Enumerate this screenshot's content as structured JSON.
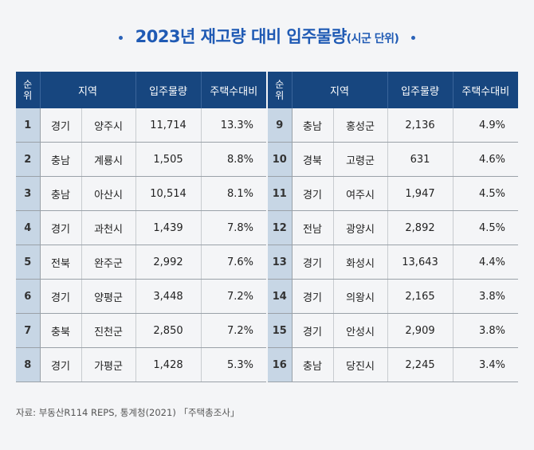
{
  "title": {
    "main": "2023년 재고량 대비 입주물량",
    "sub": "(시군 단위)"
  },
  "headers": {
    "rank": "순\n위",
    "region": "지역",
    "supply": "입주물량",
    "ratio": "주택수대비"
  },
  "left_rows": [
    {
      "rank": "1",
      "province": "경기",
      "city": "양주시",
      "supply": "11,714",
      "ratio": "13.3%"
    },
    {
      "rank": "2",
      "province": "충남",
      "city": "계룡시",
      "supply": "1,505",
      "ratio": "8.8%"
    },
    {
      "rank": "3",
      "province": "충남",
      "city": "아산시",
      "supply": "10,514",
      "ratio": "8.1%"
    },
    {
      "rank": "4",
      "province": "경기",
      "city": "과천시",
      "supply": "1,439",
      "ratio": "7.8%"
    },
    {
      "rank": "5",
      "province": "전북",
      "city": "완주군",
      "supply": "2,992",
      "ratio": "7.6%"
    },
    {
      "rank": "6",
      "province": "경기",
      "city": "양평군",
      "supply": "3,448",
      "ratio": "7.2%"
    },
    {
      "rank": "7",
      "province": "충북",
      "city": "진천군",
      "supply": "2,850",
      "ratio": "7.2%"
    },
    {
      "rank": "8",
      "province": "경기",
      "city": "가평군",
      "supply": "1,428",
      "ratio": "5.3%"
    }
  ],
  "right_rows": [
    {
      "rank": "9",
      "province": "충남",
      "city": "홍성군",
      "supply": "2,136",
      "ratio": "4.9%"
    },
    {
      "rank": "10",
      "province": "경북",
      "city": "고령군",
      "supply": "631",
      "ratio": "4.6%"
    },
    {
      "rank": "11",
      "province": "경기",
      "city": "여주시",
      "supply": "1,947",
      "ratio": "4.5%"
    },
    {
      "rank": "12",
      "province": "전남",
      "city": "광양시",
      "supply": "2,892",
      "ratio": "4.5%"
    },
    {
      "rank": "13",
      "province": "경기",
      "city": "화성시",
      "supply": "13,643",
      "ratio": "4.4%"
    },
    {
      "rank": "14",
      "province": "경기",
      "city": "의왕시",
      "supply": "2,165",
      "ratio": "3.8%"
    },
    {
      "rank": "15",
      "province": "경기",
      "city": "안성시",
      "supply": "2,909",
      "ratio": "3.8%"
    },
    {
      "rank": "16",
      "province": "충남",
      "city": "당진시",
      "supply": "2,245",
      "ratio": "3.4%"
    }
  ],
  "source": "자료: 부동산R114 REPS, 통계청(2021) 「주택총조사」",
  "colors": {
    "header_bg": "#17467f",
    "rank_bg": "#c7d6e5",
    "title": "#1f5ab4"
  }
}
